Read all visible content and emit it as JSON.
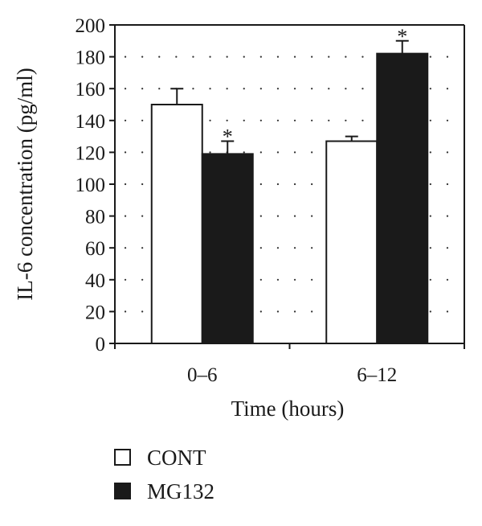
{
  "chart_data": {
    "type": "bar",
    "title": "",
    "xlabel": "Time (hours)",
    "ylabel": "IL-6 concentration (pg/ml)",
    "categories": [
      "0–6",
      "6–12"
    ],
    "series": [
      {
        "name": "CONT",
        "values": [
          150,
          127
        ],
        "errors": [
          10,
          3
        ],
        "significant": [
          false,
          false
        ],
        "color": "#ffffff"
      },
      {
        "name": "MG132",
        "values": [
          119,
          182
        ],
        "errors": [
          8,
          8
        ],
        "significant": [
          true,
          true
        ],
        "color": "#1a1a1a"
      }
    ],
    "ylim": [
      0,
      200
    ],
    "yticks": [
      "0",
      "20",
      "40",
      "60",
      "80",
      "100",
      "120",
      "140",
      "160",
      "180",
      "200"
    ],
    "grid": true,
    "grid_style": "dotted",
    "significance_marker": "*",
    "legend_position": "bottom-left"
  }
}
